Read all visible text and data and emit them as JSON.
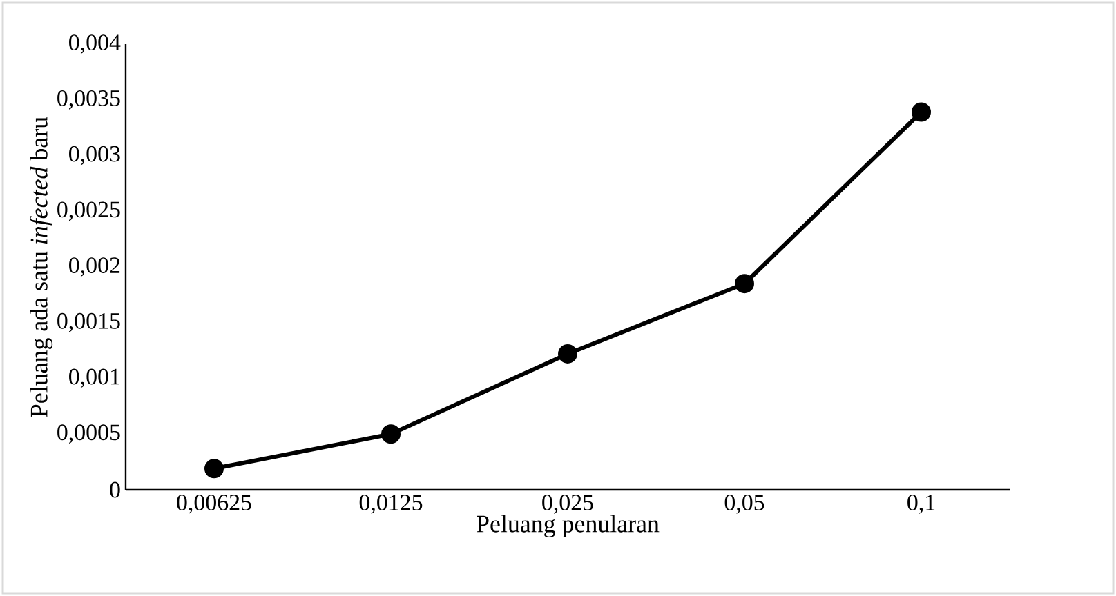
{
  "chart_data": {
    "type": "line",
    "xlabel": "Peluang penularan",
    "ylabel": "Peluang ada satu *infected* baru",
    "categories": [
      "0,00625",
      "0,0125",
      "0,025",
      "0,05",
      "0,1"
    ],
    "series": [
      {
        "color": "#000000",
        "values": [
          0.00019,
          0.0005,
          0.00122,
          0.00185,
          0.00339
        ]
      }
    ],
    "ylim": [
      0,
      0.004
    ],
    "yticks": [
      {
        "value": 0,
        "label": "0"
      },
      {
        "value": 0.0005,
        "label": "0,0005"
      },
      {
        "value": 0.001,
        "label": "0,001"
      },
      {
        "value": 0.0015,
        "label": "0,0015"
      },
      {
        "value": 0.002,
        "label": "0,002"
      },
      {
        "value": 0.0025,
        "label": "0,0025"
      },
      {
        "value": 0.003,
        "label": "0,003"
      },
      {
        "value": 0.0035,
        "label": "0,0035"
      },
      {
        "value": 0.004,
        "label": "0,004"
      }
    ],
    "grid": false,
    "legend": false,
    "marker": "circle",
    "line_style": "solid"
  }
}
